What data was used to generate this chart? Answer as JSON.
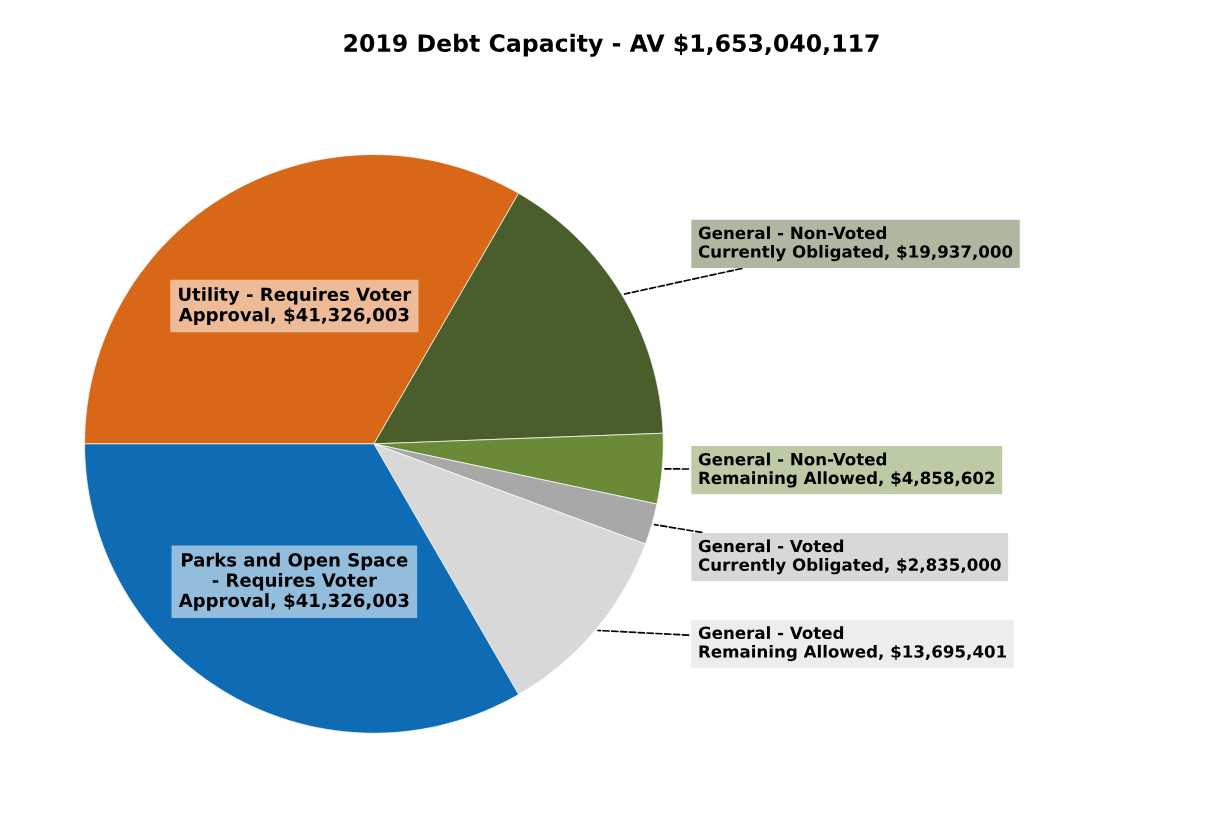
{
  "chart_data": {
    "type": "pie",
    "title": "2019 Debt Capacity - AV $1,653,040,117",
    "categories": [
      "Utility - Requires Voter\nApproval",
      "General - Non-Voted\nCurrently Obligated",
      "General - Non-Voted\nRemaining Allowed",
      "General - Voted\nCurrently Obligated",
      "General - Voted\nRemaining Allowed",
      "Parks and Open Space\n- Requires Voter\nApproval"
    ],
    "values": [
      41326003,
      19937000,
      4858602,
      2835000,
      13695401,
      41326003
    ],
    "value_labels": [
      "$41,326,003",
      "$19,937,000",
      "$4,858,602",
      "$2,835,000",
      "$13,695,401",
      "$41,326,003"
    ],
    "colors": [
      "#d86818",
      "#4a5e2b",
      "#6a8a38",
      "#a8a8a8",
      "#d8d8d8",
      "#0f6cb4"
    ],
    "legend": false
  }
}
